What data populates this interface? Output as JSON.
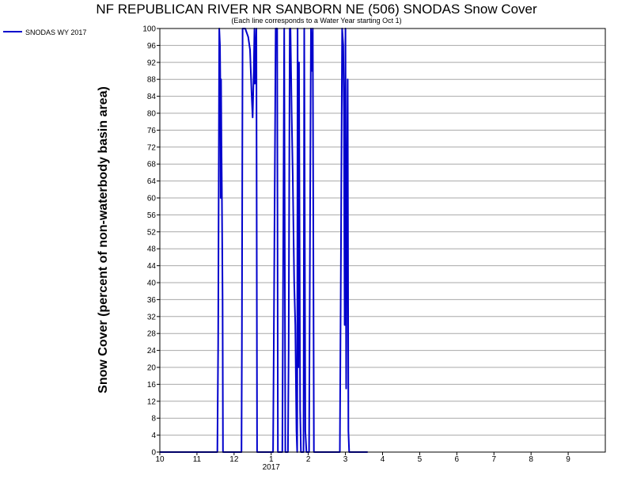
{
  "chart_data": {
    "type": "line",
    "title": "NF REPUBLICAN RIVER NR SANBORN NE (506) SNODAS Snow Cover",
    "subtitle": "(Each line corresponds to a Water Year starting Oct 1)",
    "ylabel": "Snow Cover (percent of non-waterbody basin area)",
    "xlabel": "",
    "legend_position": "top-left",
    "grid": true,
    "ylim": [
      0,
      100
    ],
    "yticks": [
      0,
      4,
      8,
      12,
      16,
      20,
      24,
      28,
      32,
      36,
      40,
      44,
      48,
      52,
      56,
      60,
      64,
      68,
      72,
      76,
      80,
      84,
      88,
      92,
      96,
      100
    ],
    "xlim": [
      0,
      12
    ],
    "xticks": [
      {
        "pos": 0,
        "label": "10"
      },
      {
        "pos": 1,
        "label": "11"
      },
      {
        "pos": 2,
        "label": "12"
      },
      {
        "pos": 3,
        "label": "1"
      },
      {
        "pos": 4,
        "label": "2"
      },
      {
        "pos": 5,
        "label": "3"
      },
      {
        "pos": 6,
        "label": "4"
      },
      {
        "pos": 7,
        "label": "5"
      },
      {
        "pos": 8,
        "label": "6"
      },
      {
        "pos": 9,
        "label": "7"
      },
      {
        "pos": 10,
        "label": "8"
      },
      {
        "pos": 11,
        "label": "9"
      }
    ],
    "year_label": {
      "pos": 3,
      "label": "2017"
    },
    "colors": {
      "series": "#0000cc",
      "grid": "#a8a8a8",
      "axis": "#000000"
    },
    "series": [
      {
        "name": "SNODAS WY 2017",
        "points": [
          [
            0,
            0
          ],
          [
            1.55,
            0
          ],
          [
            1.57,
            25
          ],
          [
            1.6,
            100
          ],
          [
            1.62,
            96
          ],
          [
            1.63,
            86
          ],
          [
            1.64,
            60
          ],
          [
            1.65,
            88
          ],
          [
            1.66,
            72
          ],
          [
            1.67,
            62
          ],
          [
            1.69,
            36
          ],
          [
            1.7,
            0
          ],
          [
            2.2,
            0
          ],
          [
            2.21,
            25
          ],
          [
            2.23,
            100
          ],
          [
            2.3,
            100
          ],
          [
            2.38,
            98
          ],
          [
            2.43,
            95
          ],
          [
            2.47,
            85
          ],
          [
            2.5,
            79
          ],
          [
            2.53,
            90
          ],
          [
            2.55,
            100
          ],
          [
            2.56,
            87
          ],
          [
            2.6,
            100
          ],
          [
            2.62,
            0
          ],
          [
            3.05,
            0
          ],
          [
            3.07,
            25
          ],
          [
            3.12,
            100
          ],
          [
            3.16,
            100
          ],
          [
            3.18,
            0
          ],
          [
            3.3,
            0
          ],
          [
            3.35,
            100
          ],
          [
            3.38,
            0
          ],
          [
            3.45,
            0
          ],
          [
            3.47,
            24
          ],
          [
            3.5,
            100
          ],
          [
            3.52,
            100
          ],
          [
            3.55,
            80
          ],
          [
            3.58,
            65
          ],
          [
            3.62,
            40
          ],
          [
            3.65,
            30
          ],
          [
            3.68,
            5
          ],
          [
            3.7,
            0
          ],
          [
            3.71,
            100
          ],
          [
            3.73,
            20
          ],
          [
            3.75,
            92
          ],
          [
            3.78,
            10
          ],
          [
            3.8,
            0
          ],
          [
            3.87,
            0
          ],
          [
            3.89,
            100
          ],
          [
            3.92,
            5
          ],
          [
            3.95,
            0
          ],
          [
            4.02,
            0
          ],
          [
            4.05,
            60
          ],
          [
            4.07,
            100
          ],
          [
            4.1,
            90
          ],
          [
            4.12,
            100
          ],
          [
            4.15,
            0
          ],
          [
            4.85,
            0
          ],
          [
            4.88,
            50
          ],
          [
            4.91,
            100
          ],
          [
            4.94,
            96
          ],
          [
            4.96,
            80
          ],
          [
            4.98,
            30
          ],
          [
            5.0,
            100
          ],
          [
            5.02,
            15
          ],
          [
            5.04,
            60
          ],
          [
            5.06,
            88
          ],
          [
            5.08,
            5
          ],
          [
            5.1,
            0
          ],
          [
            5.6,
            0
          ]
        ]
      }
    ]
  }
}
